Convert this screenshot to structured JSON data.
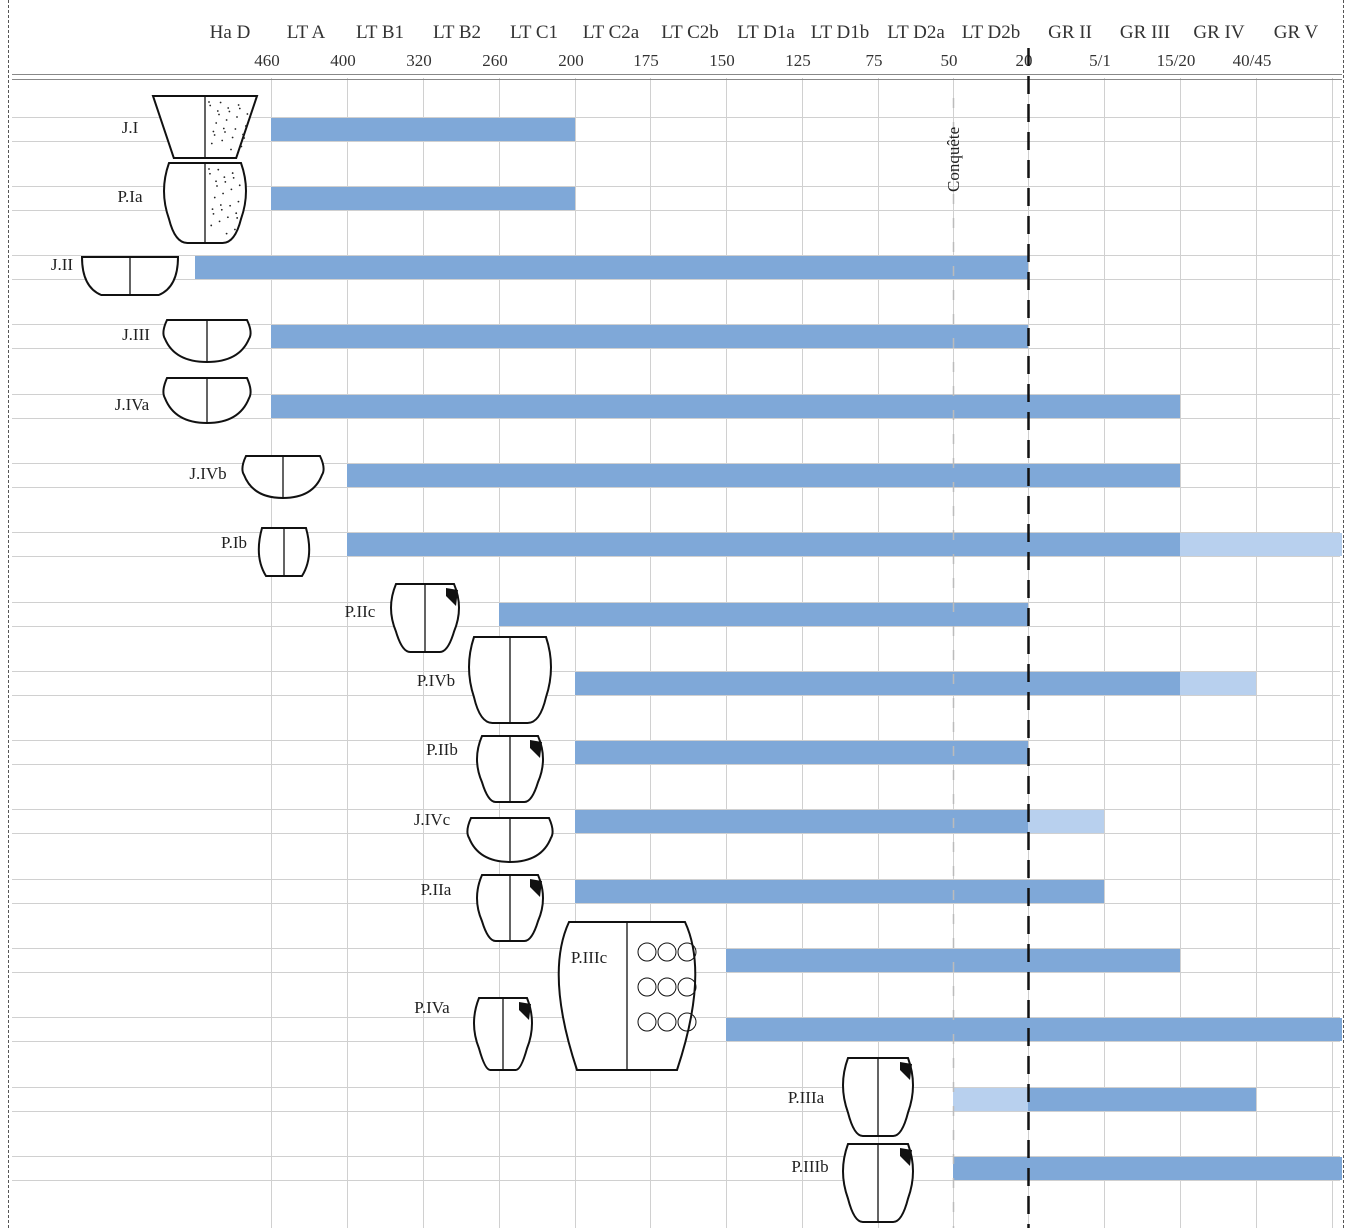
{
  "chart_data": {
    "type": "bar",
    "periods": [
      "Ha D",
      "LT A",
      "LT B1",
      "LT B2",
      "LT C1",
      "LT C2a",
      "LT C2b",
      "LT D1a",
      "LT D1b",
      "LT D2a",
      "LT D2b",
      "GR II",
      "GR III",
      "GR IV",
      "GR V"
    ],
    "date_ticks": [
      "460",
      "400",
      "320",
      "260",
      "200",
      "175",
      "150",
      "125",
      "75",
      "50",
      "20",
      "5/1",
      "15/20",
      "40/45"
    ],
    "marker": {
      "label": "Conquête",
      "at": "50"
    },
    "rows": [
      {
        "name": "J.I",
        "solid": [
          "460",
          "200"
        ]
      },
      {
        "name": "P.Ia",
        "solid": [
          "460",
          "200"
        ]
      },
      {
        "name": "J.II",
        "solid": [
          "Ha D",
          "20"
        ]
      },
      {
        "name": "J.III",
        "solid": [
          "460",
          "20"
        ]
      },
      {
        "name": "J.IVa",
        "solid": [
          "460",
          "15/20"
        ]
      },
      {
        "name": "J.IVb",
        "solid": [
          "400",
          "15/20"
        ]
      },
      {
        "name": "P.Ib",
        "solid": [
          "400",
          "15/20"
        ],
        "light": [
          "15/20",
          "GR V"
        ]
      },
      {
        "name": "P.IIc",
        "solid": [
          "260",
          "20"
        ]
      },
      {
        "name": "P.IVb",
        "solid": [
          "200",
          "15/20"
        ],
        "light": [
          "15/20",
          "40/45"
        ]
      },
      {
        "name": "P.IIb",
        "solid": [
          "200",
          "20"
        ]
      },
      {
        "name": "J.IVc",
        "solid": [
          "200",
          "20"
        ],
        "light": [
          "20",
          "5/1"
        ]
      },
      {
        "name": "P.IIa",
        "solid": [
          "200",
          "5/1"
        ]
      },
      {
        "name": "P.IIIc",
        "solid": [
          "150",
          "15/20"
        ]
      },
      {
        "name": "P.IVa",
        "solid": [
          "150",
          "GR V"
        ]
      },
      {
        "name": "P.IIIa",
        "light": [
          "50",
          "20"
        ],
        "solid": [
          "20",
          "40/45"
        ]
      },
      {
        "name": "P.IIIb",
        "solid": [
          "50",
          "GR V"
        ]
      }
    ],
    "colors": {
      "solid": "#7fa8d8",
      "light": "#b8d0ee",
      "grid": "#d0d0d0",
      "divider": "#111"
    }
  }
}
